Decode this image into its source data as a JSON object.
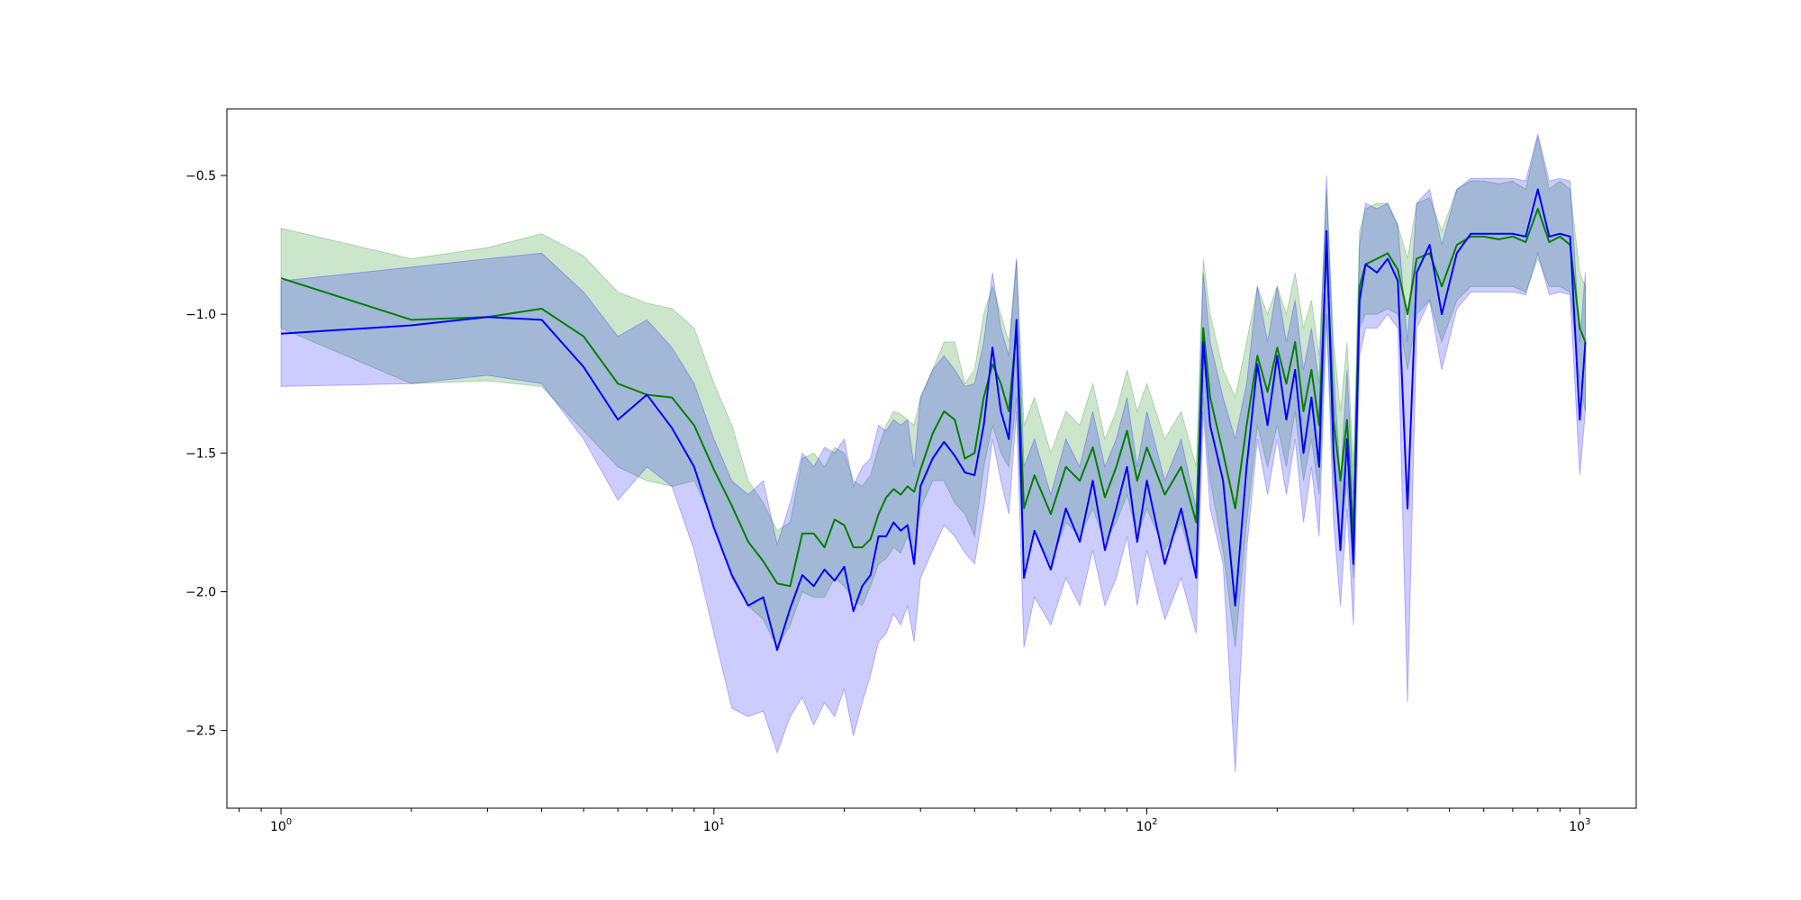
{
  "chart_data": {
    "type": "line",
    "title": "",
    "xlabel": "",
    "ylabel": "",
    "xscale": "log",
    "xlim": [
      0.75,
      1350
    ],
    "ylim": [
      -2.78,
      -0.26
    ],
    "grid": false,
    "legend": "none",
    "x_ticks": [
      {
        "value": 1,
        "base": "10",
        "exp": "0"
      },
      {
        "value": 10,
        "base": "10",
        "exp": "1"
      },
      {
        "value": 100,
        "base": "10",
        "exp": "2"
      },
      {
        "value": 1000,
        "base": "10",
        "exp": "3"
      }
    ],
    "y_ticks": [
      {
        "value": -0.5,
        "label": "−0.5"
      },
      {
        "value": -1.0,
        "label": "−1.0"
      },
      {
        "value": -1.5,
        "label": "−1.5"
      },
      {
        "value": -2.0,
        "label": "−2.0"
      },
      {
        "value": -2.5,
        "label": "−2.5"
      }
    ],
    "series": [
      {
        "color": "#008000",
        "band_color": "#008000",
        "band_opacity": 0.2,
        "x": [
          1,
          2,
          3,
          4,
          5,
          6,
          7,
          8,
          9,
          10,
          11,
          12,
          13,
          14,
          15,
          16,
          17,
          18,
          19,
          20,
          21,
          22,
          23,
          24,
          25,
          26,
          27,
          28,
          29,
          30,
          32,
          34,
          36,
          38,
          40,
          42,
          44,
          46,
          48,
          50,
          52,
          55,
          60,
          65,
          70,
          75,
          80,
          85,
          90,
          95,
          100,
          110,
          120,
          130,
          135,
          140,
          150,
          160,
          170,
          180,
          190,
          200,
          210,
          220,
          230,
          240,
          250,
          260,
          270,
          280,
          290,
          300,
          310,
          320,
          340,
          360,
          380,
          400,
          420,
          450,
          480,
          520,
          560,
          600,
          650,
          700,
          750,
          800,
          850,
          900,
          950,
          1000,
          1030
        ],
        "y": [
          -0.87,
          -1.02,
          -1.01,
          -0.98,
          -1.08,
          -1.25,
          -1.29,
          -1.3,
          -1.4,
          -1.56,
          -1.69,
          -1.82,
          -1.89,
          -1.97,
          -1.98,
          -1.79,
          -1.79,
          -1.84,
          -1.74,
          -1.76,
          -1.84,
          -1.84,
          -1.81,
          -1.72,
          -1.66,
          -1.63,
          -1.65,
          -1.62,
          -1.64,
          -1.56,
          -1.43,
          -1.35,
          -1.38,
          -1.52,
          -1.5,
          -1.3,
          -1.18,
          -1.25,
          -1.35,
          -1.05,
          -1.7,
          -1.58,
          -1.72,
          -1.55,
          -1.6,
          -1.48,
          -1.66,
          -1.55,
          -1.42,
          -1.6,
          -1.48,
          -1.65,
          -1.55,
          -1.75,
          -1.05,
          -1.3,
          -1.5,
          -1.7,
          -1.4,
          -1.15,
          -1.28,
          -1.12,
          -1.25,
          -1.1,
          -1.35,
          -1.2,
          -1.4,
          -0.75,
          -1.38,
          -1.6,
          -1.38,
          -1.8,
          -0.9,
          -0.82,
          -0.8,
          -0.78,
          -0.84,
          -1.0,
          -0.8,
          -0.78,
          -0.9,
          -0.75,
          -0.72,
          -0.72,
          -0.73,
          -0.72,
          -0.74,
          -0.62,
          -0.74,
          -0.72,
          -0.75,
          -1.05,
          -1.1
        ],
        "y_low": [
          -1.05,
          -1.25,
          -1.24,
          -1.26,
          -1.42,
          -1.55,
          -1.6,
          -1.62,
          -1.6,
          -1.75,
          -1.95,
          -2.05,
          -2.1,
          -2.2,
          -2.12,
          -2.0,
          -2.02,
          -2.02,
          -1.95,
          -1.98,
          -2.03,
          -2.05,
          -1.98,
          -1.9,
          -1.88,
          -1.84,
          -1.86,
          -1.8,
          -1.85,
          -1.7,
          -1.6,
          -1.6,
          -1.68,
          -1.72,
          -1.8,
          -1.55,
          -1.4,
          -1.5,
          -1.55,
          -1.3,
          -1.95,
          -1.78,
          -1.9,
          -1.75,
          -1.8,
          -1.7,
          -1.82,
          -1.75,
          -1.65,
          -1.8,
          -1.7,
          -1.85,
          -1.75,
          -1.95,
          -1.3,
          -1.6,
          -1.85,
          -2.2,
          -1.75,
          -1.4,
          -1.55,
          -1.4,
          -1.55,
          -1.35,
          -1.6,
          -1.45,
          -1.65,
          -1.0,
          -1.6,
          -1.8,
          -1.6,
          -1.95,
          -1.05,
          -1.0,
          -1.0,
          -0.98,
          -1.0,
          -1.2,
          -1.0,
          -0.95,
          -1.1,
          -0.95,
          -0.9,
          -0.9,
          -0.9,
          -0.9,
          -0.92,
          -0.8,
          -0.9,
          -0.9,
          -0.92,
          -1.25,
          -1.35
        ],
        "y_high": [
          -0.69,
          -0.8,
          -0.76,
          -0.71,
          -0.79,
          -0.92,
          -0.96,
          -0.98,
          -1.05,
          -1.25,
          -1.4,
          -1.6,
          -1.68,
          -1.78,
          -1.75,
          -1.52,
          -1.5,
          -1.55,
          -1.48,
          -1.5,
          -1.6,
          -1.62,
          -1.58,
          -1.48,
          -1.4,
          -1.35,
          -1.36,
          -1.38,
          -1.4,
          -1.3,
          -1.2,
          -1.1,
          -1.1,
          -1.25,
          -1.2,
          -1.0,
          -0.9,
          -1.0,
          -1.1,
          -0.8,
          -1.4,
          -1.3,
          -1.5,
          -1.35,
          -1.4,
          -1.25,
          -1.45,
          -1.35,
          -1.2,
          -1.35,
          -1.25,
          -1.45,
          -1.35,
          -1.55,
          -0.8,
          -1.0,
          -1.2,
          -1.3,
          -1.1,
          -0.9,
          -1.0,
          -0.9,
          -1.0,
          -0.85,
          -1.05,
          -0.95,
          -1.15,
          -0.55,
          -1.1,
          -1.35,
          -1.1,
          -1.55,
          -0.7,
          -0.62,
          -0.6,
          -0.6,
          -0.68,
          -0.8,
          -0.6,
          -0.58,
          -0.7,
          -0.55,
          -0.52,
          -0.52,
          -0.53,
          -0.52,
          -0.55,
          -0.36,
          -0.55,
          -0.52,
          -0.55,
          -0.85,
          -0.9
        ]
      },
      {
        "color": "#0000ff",
        "band_color": "#0000ff",
        "band_opacity": 0.2,
        "x": [
          1,
          2,
          3,
          4,
          5,
          6,
          7,
          8,
          9,
          10,
          11,
          12,
          13,
          14,
          15,
          16,
          17,
          18,
          19,
          20,
          21,
          22,
          23,
          24,
          25,
          26,
          27,
          28,
          29,
          30,
          32,
          34,
          36,
          38,
          40,
          42,
          44,
          46,
          48,
          50,
          52,
          55,
          60,
          65,
          70,
          75,
          80,
          85,
          90,
          95,
          100,
          110,
          120,
          130,
          135,
          140,
          150,
          160,
          170,
          180,
          190,
          200,
          210,
          220,
          230,
          240,
          250,
          260,
          270,
          280,
          290,
          300,
          310,
          320,
          340,
          360,
          380,
          400,
          420,
          450,
          480,
          520,
          560,
          600,
          650,
          700,
          750,
          800,
          850,
          900,
          950,
          1000,
          1030
        ],
        "y": [
          -1.07,
          -1.04,
          -1.01,
          -1.02,
          -1.19,
          -1.38,
          -1.29,
          -1.41,
          -1.55,
          -1.77,
          -1.94,
          -2.05,
          -2.02,
          -2.21,
          -2.06,
          -1.94,
          -1.98,
          -1.92,
          -1.96,
          -1.91,
          -2.07,
          -1.98,
          -1.94,
          -1.8,
          -1.8,
          -1.75,
          -1.78,
          -1.76,
          -1.9,
          -1.62,
          -1.52,
          -1.46,
          -1.51,
          -1.57,
          -1.58,
          -1.4,
          -1.12,
          -1.35,
          -1.45,
          -1.02,
          -1.95,
          -1.78,
          -1.92,
          -1.7,
          -1.82,
          -1.6,
          -1.85,
          -1.7,
          -1.55,
          -1.82,
          -1.6,
          -1.9,
          -1.7,
          -1.95,
          -1.1,
          -1.4,
          -1.6,
          -2.05,
          -1.55,
          -1.18,
          -1.4,
          -1.15,
          -1.38,
          -1.2,
          -1.5,
          -1.3,
          -1.55,
          -0.7,
          -1.5,
          -1.85,
          -1.45,
          -1.9,
          -0.95,
          -0.82,
          -0.85,
          -0.8,
          -0.88,
          -1.7,
          -0.85,
          -0.75,
          -1.0,
          -0.78,
          -0.71,
          -0.71,
          -0.71,
          -0.71,
          -0.72,
          -0.55,
          -0.72,
          -0.71,
          -0.72,
          -1.38,
          -1.1
        ],
        "y_low": [
          -1.26,
          -1.25,
          -1.22,
          -1.25,
          -1.45,
          -1.67,
          -1.55,
          -1.62,
          -1.85,
          -2.15,
          -2.42,
          -2.45,
          -2.43,
          -2.58,
          -2.45,
          -2.38,
          -2.48,
          -2.4,
          -2.45,
          -2.35,
          -2.52,
          -2.4,
          -2.3,
          -2.18,
          -2.15,
          -2.08,
          -2.12,
          -2.05,
          -2.18,
          -1.95,
          -1.85,
          -1.76,
          -1.8,
          -1.86,
          -1.9,
          -1.7,
          -1.45,
          -1.6,
          -1.72,
          -1.35,
          -2.2,
          -2.02,
          -2.12,
          -1.95,
          -2.05,
          -1.85,
          -2.05,
          -1.95,
          -1.8,
          -2.05,
          -1.85,
          -2.1,
          -1.95,
          -2.15,
          -1.35,
          -1.7,
          -1.9,
          -2.65,
          -1.85,
          -1.45,
          -1.65,
          -1.45,
          -1.65,
          -1.45,
          -1.75,
          -1.55,
          -1.8,
          -1.0,
          -1.75,
          -2.05,
          -1.7,
          -2.12,
          -1.15,
          -1.05,
          -1.05,
          -1.0,
          -1.05,
          -2.4,
          -1.05,
          -0.95,
          -1.2,
          -0.98,
          -0.92,
          -0.92,
          -0.92,
          -0.92,
          -0.93,
          -0.78,
          -0.93,
          -0.92,
          -0.93,
          -1.58,
          -1.35
        ],
        "y_high": [
          -0.88,
          -0.83,
          -0.8,
          -0.78,
          -0.92,
          -1.08,
          -1.02,
          -1.12,
          -1.25,
          -1.45,
          -1.6,
          -1.65,
          -1.6,
          -1.83,
          -1.68,
          -1.5,
          -1.55,
          -1.48,
          -1.5,
          -1.45,
          -1.62,
          -1.55,
          -1.52,
          -1.4,
          -1.42,
          -1.38,
          -1.4,
          -1.38,
          -1.55,
          -1.3,
          -1.2,
          -1.15,
          -1.2,
          -1.26,
          -1.25,
          -1.1,
          -0.85,
          -1.05,
          -1.15,
          -0.8,
          -1.55,
          -1.45,
          -1.65,
          -1.45,
          -1.55,
          -1.35,
          -1.55,
          -1.45,
          -1.3,
          -1.55,
          -1.35,
          -1.6,
          -1.45,
          -1.7,
          -0.85,
          -1.1,
          -1.3,
          -1.45,
          -1.25,
          -0.9,
          -1.1,
          -0.9,
          -1.1,
          -0.95,
          -1.2,
          -1.05,
          -1.25,
          -0.5,
          -1.2,
          -1.6,
          -1.2,
          -1.65,
          -0.75,
          -0.6,
          -0.62,
          -0.6,
          -0.68,
          -1.1,
          -0.6,
          -0.55,
          -0.75,
          -0.55,
          -0.51,
          -0.51,
          -0.51,
          -0.51,
          -0.52,
          -0.35,
          -0.52,
          -0.51,
          -0.52,
          -1.1,
          -0.85
        ]
      }
    ]
  }
}
